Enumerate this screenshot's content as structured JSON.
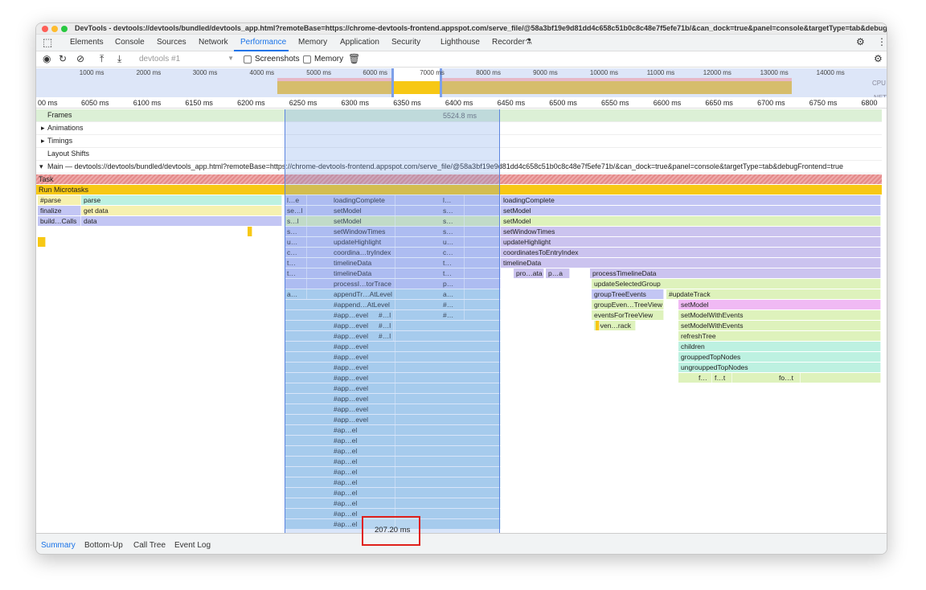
{
  "window": {
    "title": "DevTools - devtools://devtools/bundled/devtools_app.html?remoteBase=https://chrome-devtools-frontend.appspot.com/serve_file/@58a3bf19e9d81dd4c658c51b0c8c48e7f5efe71b/&can_dock=true&panel=console&targetType=tab&debugFrontend=true"
  },
  "tabs": [
    {
      "label": "Elements"
    },
    {
      "label": "Console"
    },
    {
      "label": "Sources"
    },
    {
      "label": "Network"
    },
    {
      "label": "Performance",
      "selected": true
    },
    {
      "label": "Memory"
    },
    {
      "label": "Application"
    },
    {
      "label": "Security"
    },
    {
      "label": "Lighthouse"
    },
    {
      "label": "Recorder"
    }
  ],
  "toolbar": {
    "target_select": "devtools #1",
    "screenshots_label": "Screenshots",
    "screenshots_checked": false,
    "memory_label": "Memory",
    "memory_checked": false
  },
  "overview": {
    "ticks": [
      "1000 ms",
      "2000 ms",
      "3000 ms",
      "4000 ms",
      "5000 ms",
      "6000 ms",
      "7000 ms",
      "8000 ms",
      "9000 ms",
      "10000 ms",
      "11000 ms",
      "12000 ms",
      "13000 ms",
      "14000 ms"
    ],
    "cpu_label": "CPU",
    "net_label": "NET"
  },
  "ruler": [
    "00 ms",
    "6050 ms",
    "6100 ms",
    "6150 ms",
    "6200 ms",
    "6250 ms",
    "6300 ms",
    "6350 ms",
    "6400 ms",
    "6450 ms",
    "6500 ms",
    "6550 ms",
    "6600 ms",
    "6650 ms",
    "6700 ms",
    "6750 ms",
    "6800 ms"
  ],
  "tracks": {
    "frames": "Frames",
    "frames_duration": "5524.8 ms",
    "animations": "Animations",
    "timings": "Timings",
    "layout_shifts": "Layout Shifts",
    "main": "Main — devtools://devtools/bundled/devtools_app.html?remoteBase=https://chrome-devtools-frontend.appspot.com/serve_file/@58a3bf19e9d81dd4c658c51b0c8c48e7f5efe71b/&can_dock=true&panel=console&targetType=tab&debugFrontend=true",
    "task": "Task",
    "run_microtasks": "Run Microtasks"
  },
  "colors": {
    "accent": "#1a73e8",
    "task": "#e48a8a",
    "microtasks": "#f7c815",
    "lavender": "#c3c6f4",
    "purple": "#cbc3ef",
    "green": "#def2bc",
    "teal": "#bdf1e1",
    "yellow": "#f6f1b0",
    "pink": "#f0b9f4",
    "selection": "#7fb4e0"
  },
  "flame": {
    "left": [
      "#parse",
      "parse",
      "finalize",
      "get data",
      "build…Calls",
      "data"
    ],
    "mid": [
      "loadingComplete",
      "setModel",
      "setModel",
      "setWindowTimes",
      "updateHighlight",
      "coordina…tryIndex",
      "timelineData",
      "timelineData",
      "processI…torTrace",
      "appendTr…AtLevel",
      "#append…AtLevel",
      "#app…evel",
      "#app…evel",
      "#app…evel",
      "#app…evel",
      "#app…evel",
      "#app…evel",
      "#app…evel",
      "#app…evel",
      "#app…evel",
      "#app…evel",
      "#app…evel",
      "#ap…el",
      "#ap…el",
      "#ap…el",
      "#ap…el",
      "#ap…el",
      "#ap…el",
      "#ap…el",
      "#ap…el",
      "#ap…el",
      "#ap…el"
    ],
    "mid_left": [
      "l…e",
      "se…l",
      "s…l",
      "s…",
      "u…",
      "c…",
      "t…",
      "t…",
      "",
      "a…"
    ],
    "mid_right": [
      "l…",
      "s…",
      "s…",
      "s…",
      "u…",
      "c…",
      "t…",
      "t…",
      "p…",
      "a…",
      "#…",
      "#…"
    ],
    "mid_hash": [
      "#…l",
      "#…l",
      "#…l"
    ],
    "right": [
      "loadingComplete",
      "setModel",
      "setModel",
      "setWindowTimes",
      "updateHighlight",
      "coordinatesToEntryIndex",
      "timelineData",
      "pro…ata",
      "p…a",
      "processTimelineData",
      "updateSelectedGroup",
      "groupTreeEvents",
      "#updateTrack",
      "groupEven…TreeView",
      "setModel",
      "eventsForTreeView",
      "setModelWithEvents",
      "even…rack",
      "setModelWithEvents",
      "refreshTree",
      "children",
      "grouppedTopNodes",
      "ungrouppedTopNodes",
      "f…",
      "f…t",
      "fo…t"
    ]
  },
  "selection_duration": "207.20 ms",
  "bottom_tabs": [
    {
      "label": "Summary",
      "selected": true
    },
    {
      "label": "Bottom-Up"
    },
    {
      "label": "Call Tree"
    },
    {
      "label": "Event Log"
    }
  ]
}
